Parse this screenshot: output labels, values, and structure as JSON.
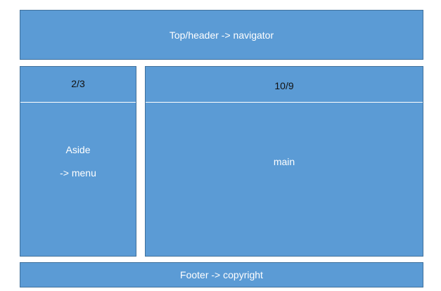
{
  "header": {
    "text": "Top/header -> navigator"
  },
  "aside": {
    "ratio": "2/3",
    "title": "Aside",
    "subtitle": "-> menu"
  },
  "main": {
    "ratio": "10/9",
    "title": "main"
  },
  "footer": {
    "text": "Footer -> copyright"
  },
  "colors": {
    "box_fill": "#5b9bd5",
    "box_border": "#41719c",
    "text_light": "#ffffff",
    "text_dark": "#111111"
  }
}
